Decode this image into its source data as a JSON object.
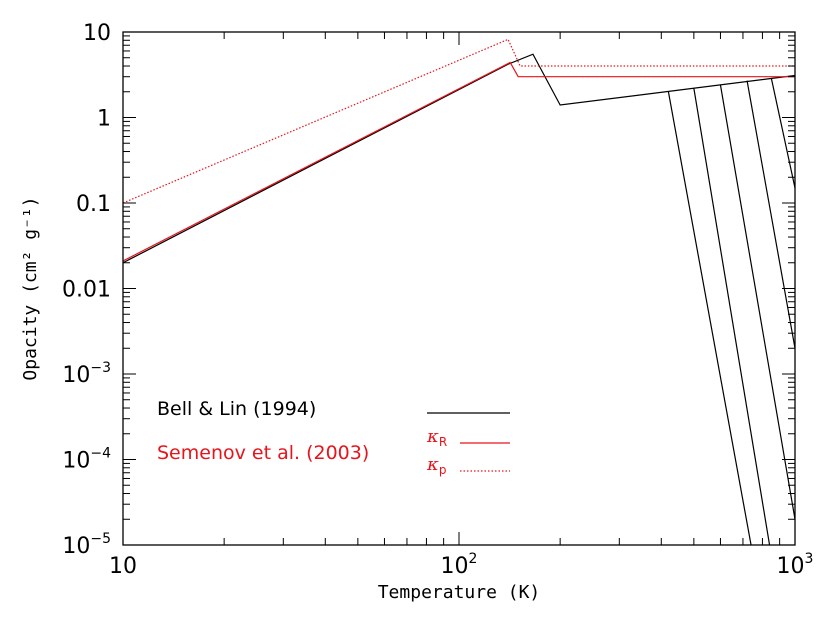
{
  "chart_data": {
    "type": "line",
    "xlabel": "Temperature (K)",
    "ylabel": "Opacity (cm² g⁻¹)",
    "xscale": "log",
    "yscale": "log",
    "xlim": [
      10,
      1000
    ],
    "ylim": [
      1e-05,
      10
    ],
    "grid": false,
    "legend_placement": "bottom-left",
    "x_tick_labels": [
      {
        "value": 10,
        "label": "10"
      },
      {
        "value": 100,
        "base": "10",
        "exp": "2"
      },
      {
        "value": 1000,
        "base": "10",
        "exp": "3"
      }
    ],
    "y_tick_labels": [
      {
        "value": 10,
        "label": "10"
      },
      {
        "value": 1,
        "label": "1"
      },
      {
        "value": 0.1,
        "label": "0.1"
      },
      {
        "value": 0.01,
        "label": "0.01"
      },
      {
        "value": 0.001,
        "base": "10",
        "exp": "−3"
      },
      {
        "value": 0.0001,
        "base": "10",
        "exp": "−4"
      },
      {
        "value": 1e-05,
        "base": "10",
        "exp": "−5"
      }
    ],
    "legend": {
      "bell_label": "Bell & Lin (1994)",
      "semenov_label": "Semenov et al. (2003)",
      "kappa_symbol": "κ",
      "kappa_r_sub": "R",
      "kappa_p_sub": "p"
    },
    "colors": {
      "bell": "#000000",
      "semenov": "#e8141b"
    },
    "series": [
      {
        "group": "bell",
        "style": "solid",
        "x": [
          10,
          140,
          166,
          200,
          1000
        ],
        "y": [
          0.02,
          4.2,
          5.5,
          1.4,
          3.1
        ]
      },
      {
        "group": "bell",
        "style": "solid",
        "x": [
          420,
          740
        ],
        "y": [
          2.0,
          1e-05
        ]
      },
      {
        "group": "bell",
        "style": "solid",
        "x": [
          500,
          840
        ],
        "y": [
          2.2,
          1e-05
        ]
      },
      {
        "group": "bell",
        "style": "solid",
        "x": [
          600,
          1000
        ],
        "y": [
          2.4,
          2e-05
        ]
      },
      {
        "group": "bell",
        "style": "solid",
        "x": [
          720,
          1000
        ],
        "y": [
          2.7,
          0.002
        ]
      },
      {
        "group": "bell",
        "style": "solid",
        "x": [
          850,
          1000
        ],
        "y": [
          2.9,
          0.15
        ]
      },
      {
        "group": "semenov",
        "name": "R",
        "style": "solid",
        "x": [
          10,
          142,
          150,
          1000
        ],
        "y": [
          0.021,
          4.4,
          3.0,
          3.0
        ]
      },
      {
        "group": "semenov",
        "name": "p",
        "style": "dotted",
        "x": [
          10,
          140,
          152,
          1000
        ],
        "y": [
          0.1,
          8.2,
          4.0,
          4.0
        ]
      }
    ]
  }
}
